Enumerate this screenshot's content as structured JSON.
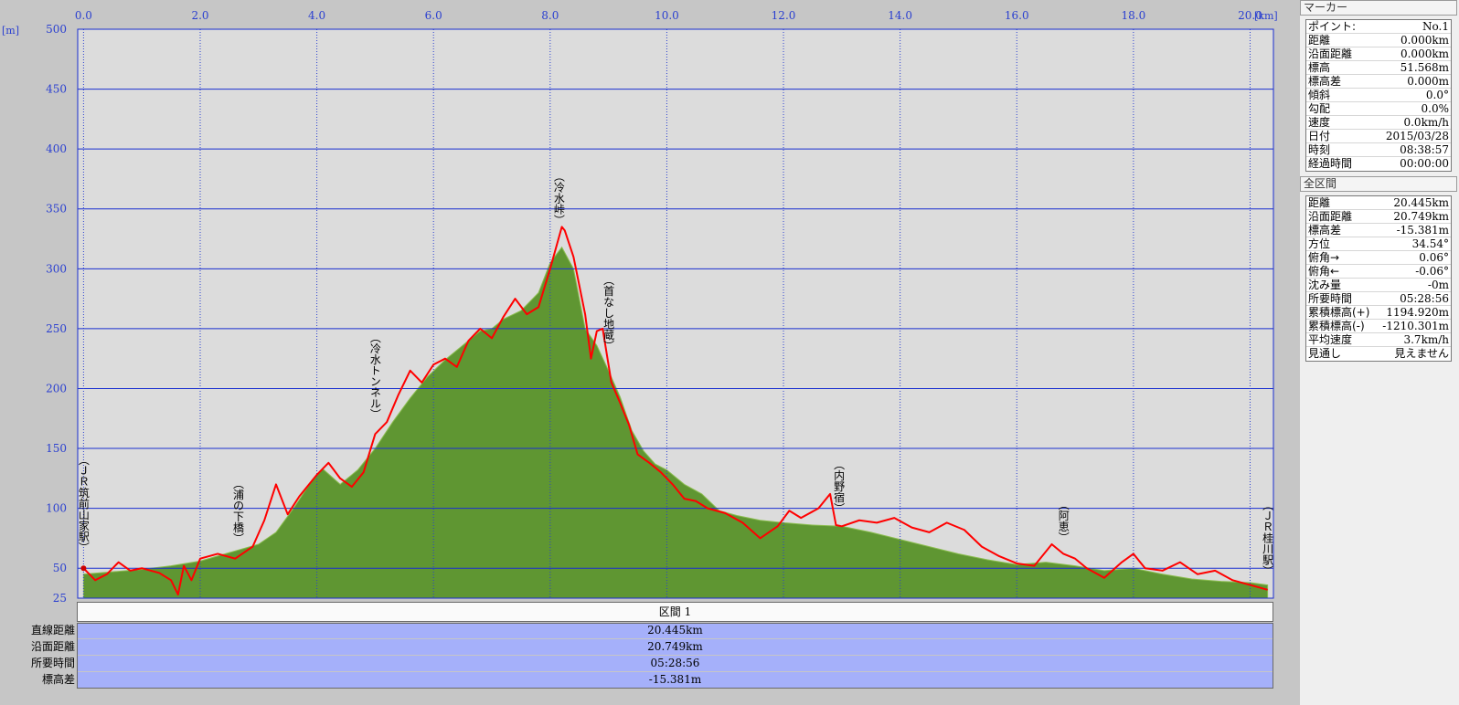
{
  "chart_data": {
    "type": "area",
    "x_unit": "[km]",
    "y_unit": "[m]",
    "xlim": [
      -0.1,
      20.4
    ],
    "ylim": [
      25,
      500
    ],
    "x_ticks": [
      "0.0",
      "2.0",
      "4.0",
      "6.0",
      "8.0",
      "10.0",
      "12.0",
      "14.0",
      "16.0",
      "18.0",
      "20.0"
    ],
    "y_ticks": [
      "500",
      "450",
      "400",
      "350",
      "300",
      "250",
      "200",
      "150",
      "100",
      "50",
      "25"
    ],
    "grid": true,
    "series": [
      {
        "color": "#5f9632",
        "x": [
          0.0,
          0.5,
          1.0,
          1.5,
          2.0,
          2.5,
          3.0,
          3.3,
          3.6,
          3.9,
          4.1,
          4.4,
          4.7,
          5.0,
          5.3,
          5.6,
          5.9,
          6.2,
          6.5,
          6.8,
          7.0,
          7.2,
          7.5,
          7.8,
          8.0,
          8.2,
          8.4,
          8.6,
          8.8,
          9.0,
          9.2,
          9.4,
          9.6,
          9.8,
          10.0,
          10.3,
          10.6,
          10.9,
          11.2,
          11.6,
          12.0,
          12.5,
          13.0,
          13.5,
          14.0,
          14.5,
          15.0,
          15.5,
          16.0,
          16.5,
          17.0,
          17.5,
          18.0,
          18.5,
          19.0,
          19.5,
          20.0,
          20.3
        ],
        "y": [
          45,
          47,
          49,
          52,
          56,
          63,
          70,
          80,
          100,
          122,
          133,
          120,
          132,
          150,
          172,
          192,
          210,
          224,
          236,
          248,
          250,
          258,
          265,
          280,
          305,
          318,
          300,
          250,
          236,
          215,
          193,
          165,
          148,
          137,
          132,
          120,
          112,
          98,
          94,
          90,
          88,
          86,
          85,
          80,
          74,
          68,
          62,
          57,
          53,
          55,
          52,
          48,
          50,
          45,
          41,
          39,
          38,
          36
        ]
      },
      {
        "color": "#ff0000",
        "x": [
          0.0,
          0.2,
          0.4,
          0.6,
          0.8,
          1.0,
          1.3,
          1.5,
          1.62,
          1.72,
          1.85,
          2.0,
          2.3,
          2.6,
          2.9,
          3.1,
          3.3,
          3.5,
          3.7,
          4.0,
          4.2,
          4.4,
          4.6,
          4.8,
          5.0,
          5.2,
          5.4,
          5.6,
          5.8,
          6.0,
          6.2,
          6.4,
          6.6,
          6.8,
          7.0,
          7.2,
          7.4,
          7.6,
          7.8,
          8.0,
          8.2,
          8.25,
          8.4,
          8.6,
          8.7,
          8.8,
          8.9,
          9.05,
          9.2,
          9.35,
          9.5,
          9.7,
          9.9,
          10.1,
          10.3,
          10.5,
          10.7,
          11.0,
          11.3,
          11.6,
          11.9,
          12.1,
          12.3,
          12.6,
          12.8,
          12.9,
          13.0,
          13.3,
          13.6,
          13.9,
          14.2,
          14.5,
          14.8,
          15.1,
          15.4,
          15.7,
          16.0,
          16.3,
          16.6,
          16.8,
          17.0,
          17.2,
          17.5,
          17.8,
          18.0,
          18.2,
          18.5,
          18.8,
          19.1,
          19.4,
          19.7,
          20.0,
          20.3
        ],
        "y": [
          50,
          40,
          45,
          55,
          48,
          50,
          46,
          40,
          28,
          52,
          40,
          58,
          62,
          58,
          68,
          90,
          120,
          95,
          110,
          128,
          138,
          125,
          118,
          130,
          162,
          172,
          195,
          215,
          205,
          220,
          225,
          218,
          240,
          250,
          242,
          260,
          275,
          262,
          268,
          300,
          335,
          332,
          310,
          262,
          225,
          248,
          250,
          205,
          188,
          170,
          145,
          138,
          130,
          120,
          108,
          106,
          100,
          96,
          88,
          75,
          85,
          98,
          92,
          100,
          112,
          86,
          85,
          90,
          88,
          92,
          84,
          80,
          88,
          82,
          68,
          60,
          54,
          52,
          70,
          62,
          58,
          50,
          42,
          55,
          62,
          50,
          48,
          55,
          45,
          48,
          40,
          36,
          32
        ]
      }
    ],
    "waypoints": [
      {
        "label": "（ＪＲ筑前山家駅）",
        "x": 0.0
      },
      {
        "label": "（浦の下橋）",
        "x": 2.65
      },
      {
        "label": "（冷水トンネル）",
        "x": 5.0
      },
      {
        "label": "（冷水峠）",
        "x": 8.15
      },
      {
        "label": "（首なし地蔵）",
        "x": 9.0
      },
      {
        "label": "（内野宿）",
        "x": 12.95
      },
      {
        "label": "（阿恵）",
        "x": 16.8
      },
      {
        "label": "（ＪＲ桂川駅）",
        "x": 20.3
      }
    ]
  },
  "section": {
    "header": "区間 1",
    "rows": [
      {
        "label": "直線距離",
        "value": "20.445km"
      },
      {
        "label": "沿面距離",
        "value": "20.749km"
      },
      {
        "label": "所要時間",
        "value": "05:28:56"
      },
      {
        "label": "標高差",
        "value": "-15.381m"
      }
    ]
  },
  "marker_panel": {
    "title": "マーカー",
    "rows": [
      {
        "k": "ポイント:",
        "v": "No.1"
      },
      {
        "k": "距離",
        "v": "0.000km"
      },
      {
        "k": "沿面距離",
        "v": "0.000km"
      },
      {
        "k": "標高",
        "v": "51.568m"
      },
      {
        "k": "標高差",
        "v": "0.000m"
      },
      {
        "k": "傾斜",
        "v": "0.0°"
      },
      {
        "k": "勾配",
        "v": "0.0%"
      },
      {
        "k": "速度",
        "v": "0.0km/h"
      },
      {
        "k": "日付",
        "v": "2015/03/28"
      },
      {
        "k": "時刻",
        "v": "08:38:57"
      },
      {
        "k": "経過時間",
        "v": "00:00:00"
      }
    ]
  },
  "total_panel": {
    "title": "全区間",
    "rows": [
      {
        "k": "距離",
        "v": "20.445km"
      },
      {
        "k": "沿面距離",
        "v": "20.749km"
      },
      {
        "k": "標高差",
        "v": "-15.381m"
      },
      {
        "k": "方位",
        "v": "34.54°"
      },
      {
        "k": "俯角→",
        "v": "0.06°"
      },
      {
        "k": "俯角←",
        "v": "-0.06°"
      },
      {
        "k": "沈み量",
        "v": "-0m"
      },
      {
        "k": "所要時間",
        "v": "05:28:56"
      },
      {
        "k": "累積標高(+)",
        "v": "1194.920m"
      },
      {
        "k": "累積標高(-)",
        "v": "-1210.301m"
      },
      {
        "k": "平均速度",
        "v": "3.7km/h"
      },
      {
        "k": "見通し",
        "v": "見えません"
      }
    ]
  }
}
